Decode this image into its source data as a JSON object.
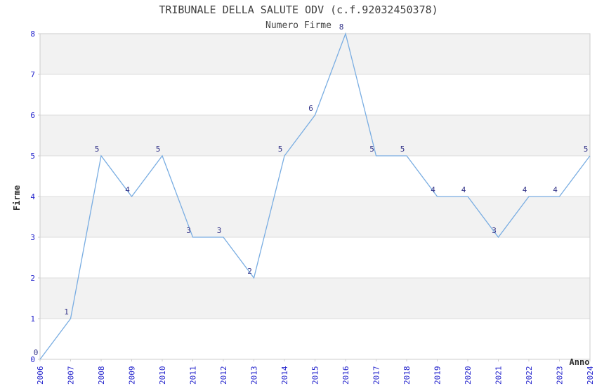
{
  "chart_data": {
    "type": "line",
    "title": "TRIBUNALE DELLA SALUTE ODV (c.f.92032450378)",
    "subtitle": "Numero Firme",
    "xlabel": "Anno",
    "ylabel": "Firme",
    "x": [
      2006,
      2007,
      2008,
      2009,
      2010,
      2011,
      2012,
      2013,
      2014,
      2015,
      2016,
      2017,
      2018,
      2019,
      2020,
      2021,
      2022,
      2023,
      2024
    ],
    "values": [
      0,
      1,
      5,
      4,
      5,
      3,
      3,
      2,
      5,
      6,
      8,
      5,
      5,
      4,
      4,
      3,
      4,
      4,
      5
    ],
    "ylim": [
      0,
      8
    ],
    "yticks": [
      0,
      1,
      2,
      3,
      4,
      5,
      6,
      7,
      8
    ],
    "grid": "horizontal-only",
    "legend": "none",
    "point_labels_visible": true,
    "colors": {
      "line": "#79ade2",
      "axis_tick_text": "#2222cc",
      "point_label": "#333388",
      "band": "#f2f2f2",
      "grid_line": "#dcdcdc",
      "border": "#cccccc",
      "plot_background": "#ffffff"
    }
  }
}
